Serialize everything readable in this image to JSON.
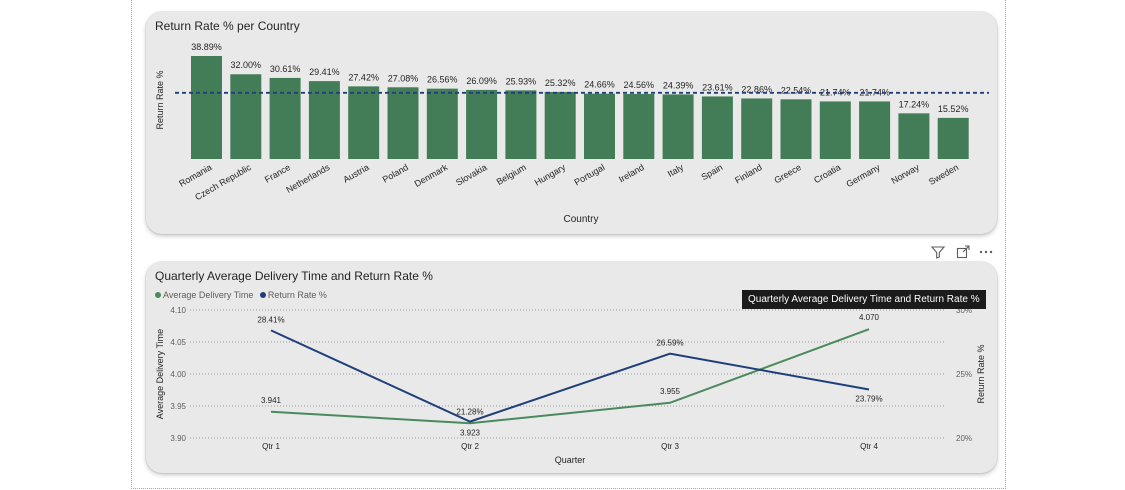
{
  "colors": {
    "bar": "#437d57",
    "line_delivery": "#4a8a5c",
    "line_return": "#1f3f7a",
    "avg_line": "#1f3f7a",
    "card_bg": "#e9e9e9"
  },
  "visual_header_icons": [
    "filter-icon",
    "focus-mode-icon",
    "more-options-icon"
  ],
  "tooltip": {
    "text": "Quarterly Average Delivery Time and Return Rate %"
  },
  "chart_data": [
    {
      "type": "bar",
      "title": "Return Rate % per Country",
      "xlabel": "Country",
      "ylabel": "Return Rate %",
      "ylim": [
        0,
        40
      ],
      "categories": [
        "Romania",
        "Czech Republic",
        "France",
        "Netherlands",
        "Austria",
        "Poland",
        "Denmark",
        "Slovakia",
        "Belgium",
        "Hungary",
        "Portugal",
        "Ireland",
        "Italy",
        "Spain",
        "Finland",
        "Greece",
        "Croatia",
        "Germany",
        "Norway",
        "Sweden"
      ],
      "values": [
        38.89,
        32.0,
        30.61,
        29.41,
        27.42,
        27.08,
        26.56,
        26.09,
        25.93,
        25.32,
        24.66,
        24.56,
        24.39,
        23.61,
        22.86,
        22.54,
        21.74,
        21.74,
        17.24,
        15.52
      ],
      "labels": [
        "38.89%",
        "32.00%",
        "30.61%",
        "29.41%",
        "27.42%",
        "27.08%",
        "26.56%",
        "26.09%",
        "25.93%",
        "25.32%",
        "24.66%",
        "24.56%",
        "24.39%",
        "23.61%",
        "22.86%",
        "22.54%",
        "21.74%",
        "21.74%",
        "17.24%",
        "15.52%"
      ],
      "average_line": 25,
      "grid": false
    },
    {
      "type": "line",
      "title": "Quarterly Average Delivery Time and Return Rate %",
      "xlabel": "Quarter",
      "ylabel": "Average Delivery Time",
      "y2label": "Return Rate %",
      "x": [
        "Qtr 1",
        "Qtr 2",
        "Qtr 3",
        "Qtr 4"
      ],
      "ylim": [
        3.9,
        4.1
      ],
      "y2lim": [
        20,
        30
      ],
      "yticks": [
        "3.90",
        "3.95",
        "4.00",
        "4.05",
        "4.10"
      ],
      "y2ticks": [
        "20%",
        "25%",
        "30%"
      ],
      "legend_position": "top-left",
      "grid": true,
      "series": [
        {
          "name": "Average Delivery Time",
          "axis": "left",
          "values": [
            3.941,
            3.923,
            3.955,
            4.07
          ],
          "labels": [
            "3.941",
            "3.923",
            "3.955",
            "4.070"
          ]
        },
        {
          "name": "Return Rate %",
          "axis": "right",
          "values": [
            28.41,
            21.28,
            26.59,
            23.79
          ],
          "labels": [
            "28.41%",
            "21.28%",
            "26.59%",
            "23.79%"
          ]
        }
      ]
    }
  ]
}
